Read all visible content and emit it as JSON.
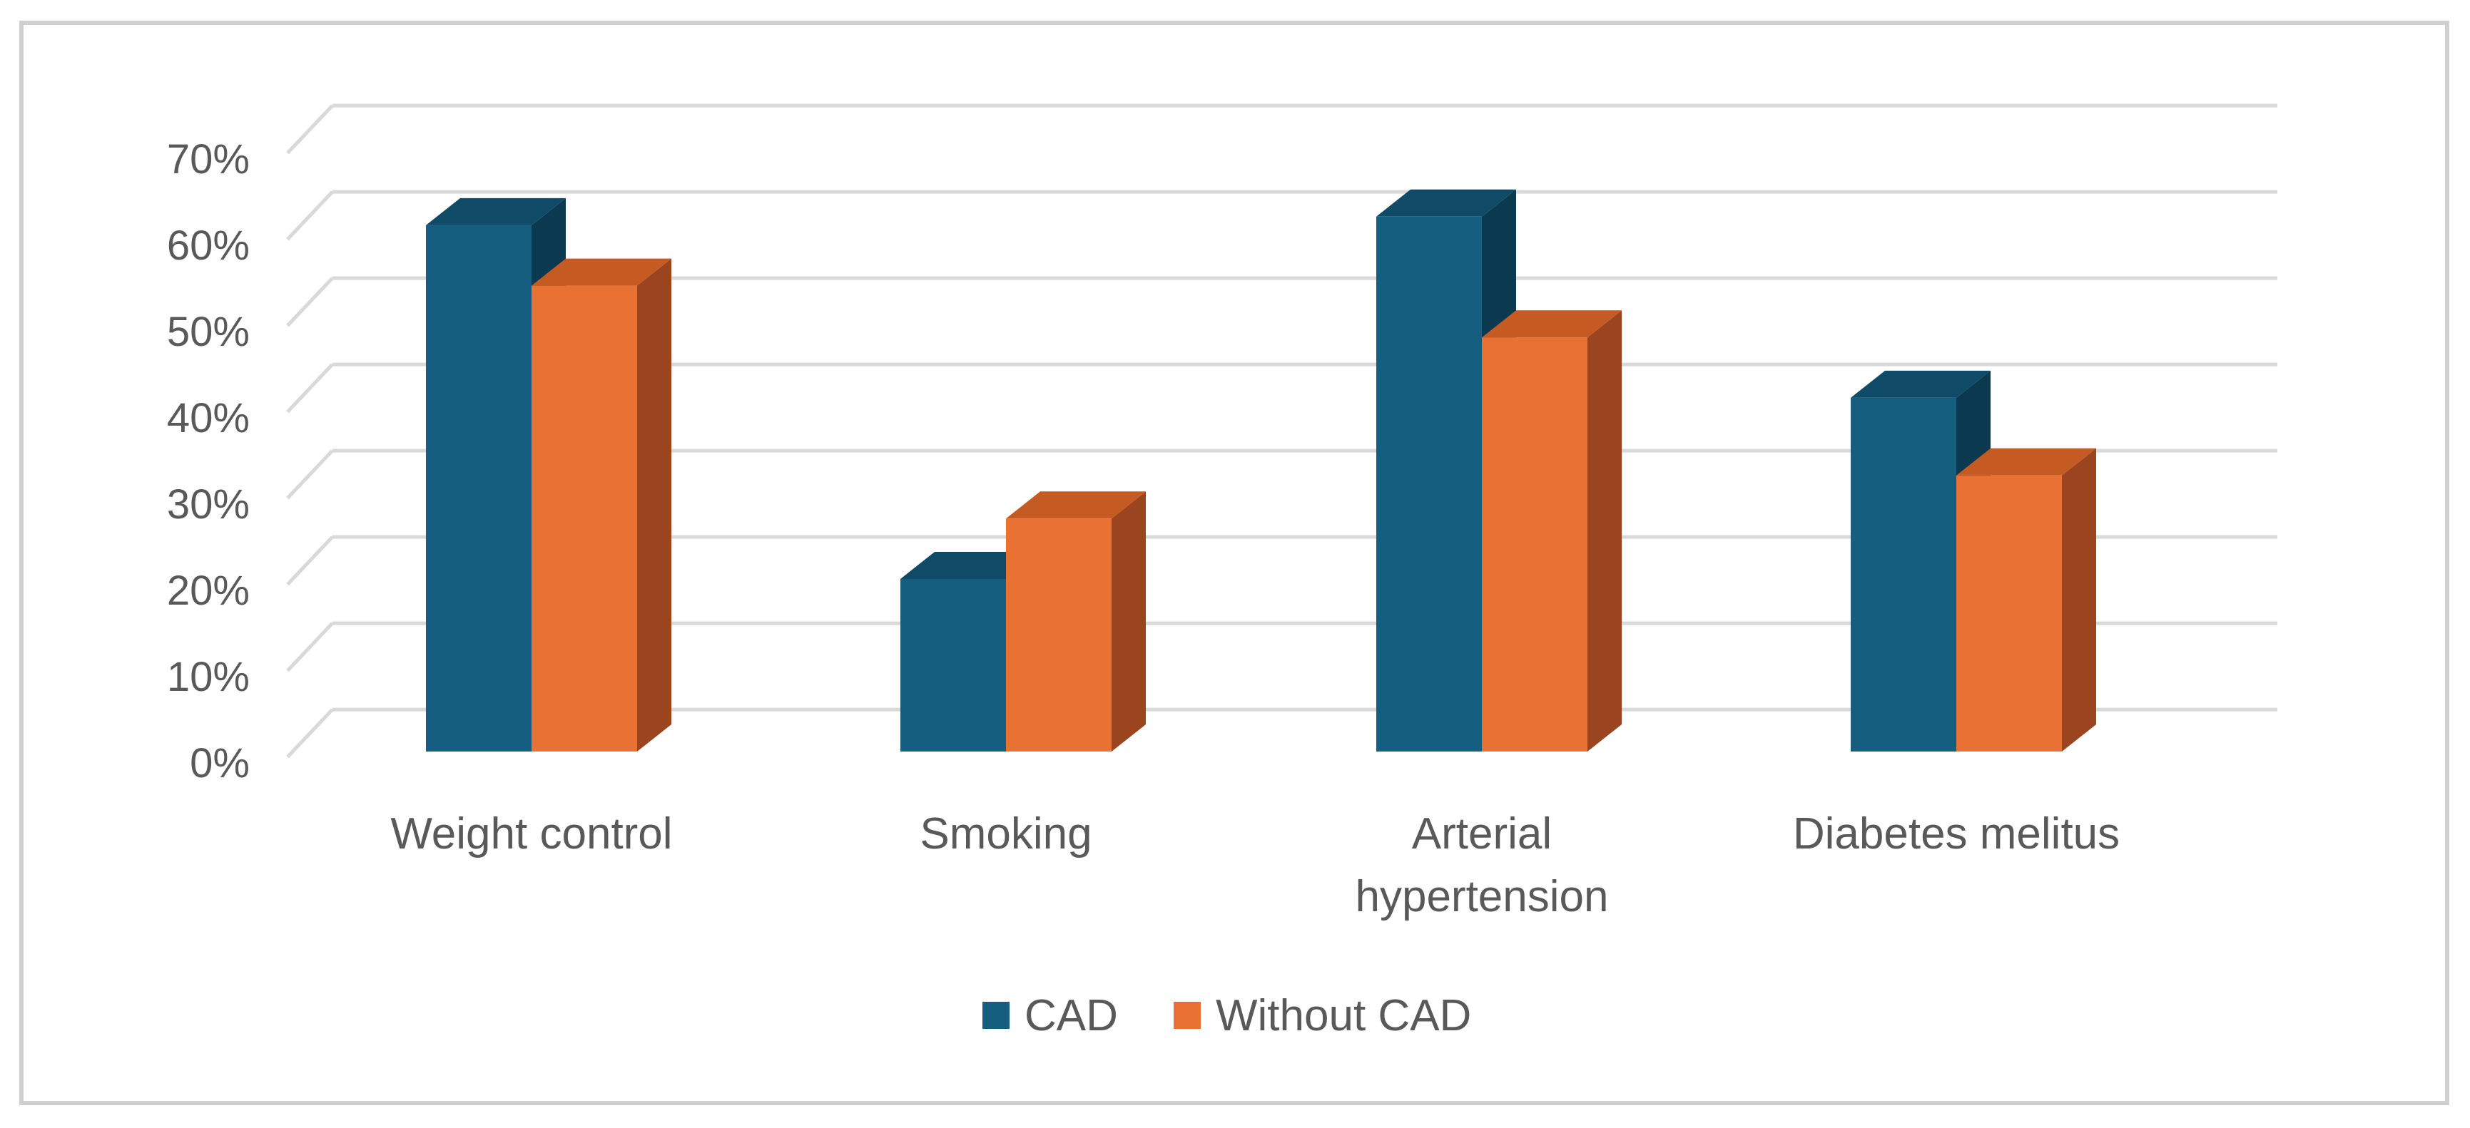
{
  "chart_data": {
    "type": "bar",
    "style": "3d-clustered-column",
    "title": "",
    "xlabel": "",
    "ylabel": "",
    "ylim": [
      0,
      70
    ],
    "yticks": [
      0,
      10,
      20,
      30,
      40,
      50,
      60,
      70
    ],
    "ytick_labels": [
      "0%",
      "10%",
      "20%",
      "30%",
      "40%",
      "50%",
      "60%",
      "70%"
    ],
    "grid": true,
    "legend_position": "bottom",
    "categories": [
      [
        "Weight control"
      ],
      [
        "Smoking"
      ],
      [
        "Arterial",
        "hypertension"
      ],
      [
        "Diabetes melitus"
      ]
    ],
    "series": [
      {
        "name": "CAD",
        "values": [
          61,
          20,
          62,
          41
        ]
      },
      {
        "name": "Without CAD",
        "values": [
          54,
          27,
          48,
          32
        ]
      }
    ]
  },
  "colors": {
    "cad_front": "#165e7f",
    "cad_top": "#0f4b66",
    "cad_side": "#0b3a50",
    "without_front": "#e87133",
    "without_top": "#c55a22",
    "without_side": "#9a4520",
    "grid": "#d9d9d9",
    "frame": "#d0d0d0"
  }
}
